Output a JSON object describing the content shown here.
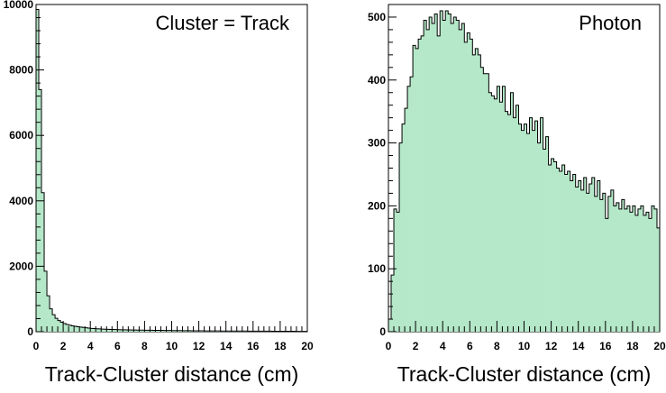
{
  "chart_data": [
    {
      "type": "histogram",
      "title": "Cluster = Track",
      "xlabel": "Track-Cluster distance (cm)",
      "ylabel": "",
      "xlim": [
        0,
        20
      ],
      "ylim": [
        0,
        10000
      ],
      "x_ticks": [
        "0",
        "2",
        "4",
        "6",
        "8",
        "10",
        "12",
        "14",
        "16",
        "18",
        "20"
      ],
      "y_ticks": [
        "0",
        "2000",
        "4000",
        "6000",
        "8000",
        "10000"
      ],
      "bin_width": 0.2,
      "fill_color": "#b4e8c8",
      "values": [
        9850,
        7400,
        4250,
        1850,
        1100,
        700,
        520,
        410,
        340,
        290,
        250,
        220,
        200,
        180,
        165,
        150,
        140,
        130,
        120,
        110,
        100,
        95,
        90,
        85,
        80,
        75,
        72,
        70,
        68,
        65,
        62,
        60,
        58,
        56,
        54,
        52,
        50,
        49,
        48,
        47,
        46,
        45,
        44,
        43,
        42,
        41,
        40,
        39,
        38,
        37,
        36,
        35,
        34,
        33,
        32,
        31,
        30,
        29,
        28,
        27,
        26,
        26,
        25,
        25,
        24,
        24,
        23,
        23,
        22,
        22,
        21,
        21,
        20,
        20,
        20,
        19,
        19,
        19,
        18,
        18,
        18,
        17,
        17,
        17,
        16,
        16,
        16,
        15,
        15,
        15,
        14,
        14,
        14,
        13,
        13,
        13,
        12,
        12,
        12,
        12
      ]
    },
    {
      "type": "histogram",
      "title": "Photon",
      "xlabel": "Track-Cluster distance (cm)",
      "ylabel": "",
      "xlim": [
        0,
        20
      ],
      "ylim": [
        0,
        520
      ],
      "x_ticks": [
        "0",
        "2",
        "4",
        "6",
        "8",
        "10",
        "12",
        "14",
        "16",
        "18",
        "20"
      ],
      "y_ticks": [
        "0",
        "100",
        "200",
        "300",
        "400",
        "500"
      ],
      "bin_width": 0.2,
      "fill_color": "#b4e8c8",
      "values": [
        20,
        90,
        195,
        190,
        300,
        330,
        355,
        390,
        405,
        455,
        450,
        465,
        470,
        495,
        480,
        500,
        490,
        505,
        470,
        510,
        495,
        510,
        505,
        490,
        500,
        495,
        480,
        490,
        460,
        475,
        465,
        440,
        450,
        440,
        420,
        410,
        410,
        380,
        375,
        370,
        390,
        365,
        390,
        350,
        345,
        380,
        340,
        360,
        330,
        320,
        330,
        315,
        340,
        320,
        335,
        300,
        340,
        290,
        310,
        265,
        275,
        270,
        260,
        255,
        265,
        250,
        255,
        240,
        250,
        230,
        240,
        225,
        245,
        220,
        235,
        245,
        215,
        240,
        210,
        220,
        180,
        215,
        225,
        200,
        205,
        195,
        210,
        195,
        200,
        190,
        200,
        185,
        195,
        200,
        185,
        190,
        180,
        200,
        195,
        165
      ]
    }
  ]
}
